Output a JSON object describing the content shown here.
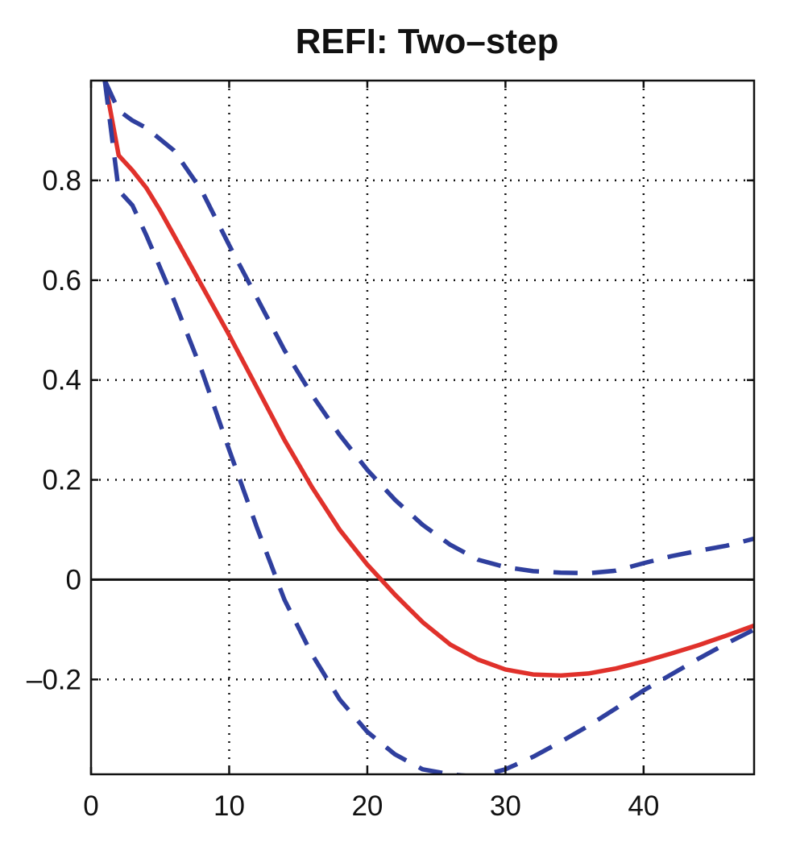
{
  "chart_data": {
    "type": "line",
    "title": "REFI: Two–step",
    "xlabel": "",
    "ylabel": "",
    "xlim": [
      0,
      48
    ],
    "ylim": [
      -0.39,
      1.0
    ],
    "grid": true,
    "grid_style": "dotted",
    "zero_line": true,
    "legend": "none",
    "x_ticks": [
      0,
      10,
      20,
      30,
      40
    ],
    "x_tick_labels": [
      "0",
      "10",
      "20",
      "30",
      "40"
    ],
    "y_ticks": [
      -0.2,
      0,
      0.2,
      0.4,
      0.6,
      0.8
    ],
    "y_tick_labels": [
      "–0.2",
      "0",
      "0.2",
      "0.4",
      "0.6",
      "0.8"
    ],
    "series": [
      {
        "style": "solid",
        "color": "#e0312b",
        "points": [
          [
            1,
            1.0
          ],
          [
            2,
            0.85
          ],
          [
            3,
            0.82
          ],
          [
            4,
            0.785
          ],
          [
            5,
            0.74
          ],
          [
            6,
            0.69
          ],
          [
            8,
            0.59
          ],
          [
            10,
            0.49
          ],
          [
            12,
            0.385
          ],
          [
            14,
            0.28
          ],
          [
            16,
            0.185
          ],
          [
            18,
            0.1
          ],
          [
            20,
            0.03
          ],
          [
            21,
            0.0
          ],
          [
            22,
            -0.03
          ],
          [
            24,
            -0.085
          ],
          [
            26,
            -0.13
          ],
          [
            28,
            -0.16
          ],
          [
            30,
            -0.18
          ],
          [
            32,
            -0.19
          ],
          [
            34,
            -0.192
          ],
          [
            36,
            -0.188
          ],
          [
            38,
            -0.178
          ],
          [
            40,
            -0.164
          ],
          [
            42,
            -0.148
          ],
          [
            44,
            -0.131
          ],
          [
            46,
            -0.112
          ],
          [
            48,
            -0.092
          ]
        ]
      },
      {
        "style": "dashed",
        "color": "#2f3f9e",
        "points": [
          [
            1,
            1.0
          ],
          [
            2,
            0.94
          ],
          [
            3,
            0.92
          ],
          [
            4,
            0.905
          ],
          [
            6,
            0.86
          ],
          [
            8,
            0.78
          ],
          [
            10,
            0.67
          ],
          [
            12,
            0.565
          ],
          [
            14,
            0.46
          ],
          [
            16,
            0.37
          ],
          [
            18,
            0.29
          ],
          [
            20,
            0.22
          ],
          [
            22,
            0.16
          ],
          [
            24,
            0.11
          ],
          [
            26,
            0.07
          ],
          [
            28,
            0.04
          ],
          [
            30,
            0.025
          ],
          [
            32,
            0.017
          ],
          [
            34,
            0.014
          ],
          [
            36,
            0.013
          ],
          [
            38,
            0.018
          ],
          [
            40,
            0.033
          ],
          [
            42,
            0.047
          ],
          [
            44,
            0.058
          ],
          [
            46,
            0.068
          ],
          [
            48,
            0.082
          ]
        ]
      },
      {
        "style": "dashed",
        "color": "#2f3f9e",
        "points": [
          [
            1,
            1.0
          ],
          [
            2,
            0.78
          ],
          [
            3,
            0.75
          ],
          [
            4,
            0.69
          ],
          [
            6,
            0.56
          ],
          [
            8,
            0.42
          ],
          [
            10,
            0.26
          ],
          [
            12,
            0.105
          ],
          [
            14,
            -0.04
          ],
          [
            16,
            -0.15
          ],
          [
            18,
            -0.24
          ],
          [
            20,
            -0.305
          ],
          [
            22,
            -0.35
          ],
          [
            24,
            -0.38
          ],
          [
            26,
            -0.39
          ],
          [
            28,
            -0.395
          ],
          [
            30,
            -0.38
          ],
          [
            32,
            -0.355
          ],
          [
            34,
            -0.325
          ],
          [
            36,
            -0.293
          ],
          [
            38,
            -0.258
          ],
          [
            40,
            -0.222
          ],
          [
            42,
            -0.19
          ],
          [
            44,
            -0.158
          ],
          [
            46,
            -0.128
          ],
          [
            48,
            -0.1
          ]
        ]
      }
    ]
  }
}
